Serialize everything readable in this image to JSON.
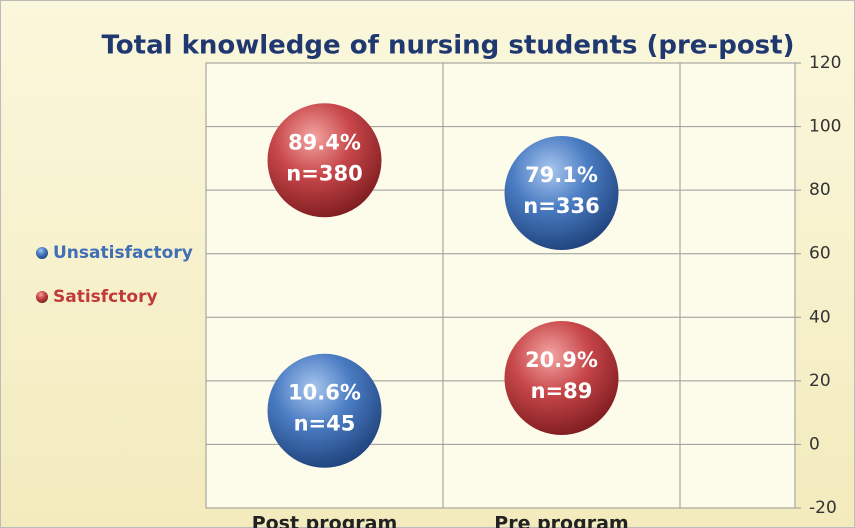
{
  "chart_data": {
    "type": "bubble",
    "title": "Total knowledge of nursing students (pre-post)",
    "categories": [
      "Post program",
      "Pre program"
    ],
    "series": [
      {
        "name": "Unsatisfactory",
        "color": "#3f6fb5",
        "values": [
          10.6,
          79.1
        ],
        "value_labels": [
          "10.6%",
          "79.1%"
        ],
        "n_labels": [
          "n=45",
          "n=336"
        ]
      },
      {
        "name": "Satisfctory",
        "color": "#c0393b",
        "values": [
          89.4,
          20.9
        ],
        "value_labels": [
          "89.4%",
          "20.9%"
        ],
        "n_labels": [
          "n=380",
          "n=89"
        ]
      }
    ],
    "ylim": [
      -20,
      120
    ],
    "yticks": [
      -20,
      0,
      20,
      40,
      60,
      80,
      100,
      120
    ],
    "grid": true,
    "legend": "left",
    "y_axis_side": "right"
  }
}
